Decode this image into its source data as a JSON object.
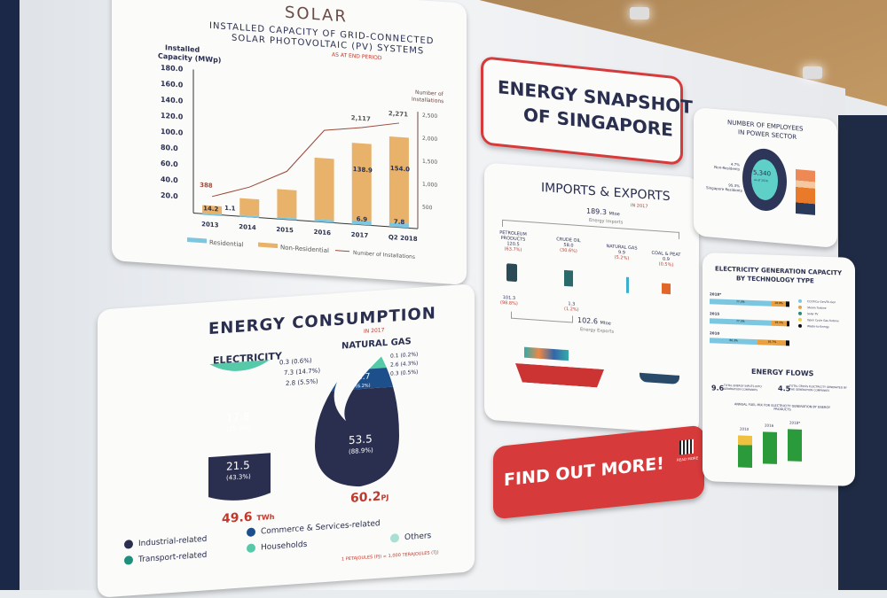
{
  "solar": {
    "title": "SOLAR",
    "subtitle_line1": "INSTALLED CAPACITY OF GRID-CONNECTED",
    "subtitle_line2": "SOLAR PHOTOVOLTAIC (PV) SYSTEMS",
    "note": "AS AT END PERIOD"
  },
  "chart_data": {
    "type": "bar",
    "title": "INSTALLED CAPACITY OF GRID-CONNECTED SOLAR PHOTOVOLTAIC (PV) SYSTEMS",
    "ylabel": "Installed Capacity (MWp)",
    "y2label": "Number of Installations",
    "categories": [
      "2013",
      "2014",
      "2015",
      "2016",
      "2017",
      "Q2 2018"
    ],
    "yticks": [
      "180.0",
      "160.0",
      "140.0",
      "120.0",
      "100.0",
      "80.0",
      "60.0",
      "40.0",
      "20.0"
    ],
    "y2ticks": [
      "2,500",
      "2,000",
      "1,500",
      "1,000",
      "500"
    ],
    "ylim": [
      0,
      180
    ],
    "y2lim": [
      0,
      2500
    ],
    "series": [
      {
        "name": "Residential",
        "color": "#7cc6e0",
        "values": [
          1.1,
          2.5,
          3.5,
          4.5,
          6.9,
          7.8
        ]
      },
      {
        "name": "Non-Residential",
        "color": "#e8b26a",
        "values": [
          14.2,
          30,
          50,
          110,
          138.9,
          154.0
        ]
      },
      {
        "name": "Number of Installations",
        "color": "#9a4a3a",
        "type": "line",
        "values": [
          388,
          650,
          1050,
          2000,
          2117,
          2271
        ]
      }
    ],
    "data_labels": [
      "14.2",
      "1.1",
      "388",
      "2,117",
      "2,271",
      "138.9",
      "154.0",
      "6.9",
      "7.8"
    ],
    "legend": "bottom"
  },
  "consumption": {
    "title": "ENERGY CONSUMPTION",
    "year": "IN 2017",
    "electricity": {
      "label": "ELECTRICITY",
      "total": "49.6",
      "unit": "TWh",
      "others": "0.3 (0.6%)",
      "households": "7.3 (14.7%)",
      "transport": "2.8 (5.5%)",
      "commerce": "17.8",
      "commerce_pct": "(35.9%)",
      "industrial": "21.5",
      "industrial_pct": "(43.3%)"
    },
    "gas": {
      "label": "NATURAL GAS",
      "total": "60.2",
      "unit": "PJ",
      "a": "0.1 (0.2%)",
      "b": "2.6 (4.3%)",
      "c": "0.3 (0.5%)",
      "commerce": "3.7",
      "commerce_pct": "(6.2%)",
      "industrial": "53.5",
      "industrial_pct": "(88.9%)"
    },
    "legend": [
      "Industrial-related",
      "Transport-related",
      "Commerce & Services-related",
      "Households",
      "Others"
    ],
    "footnote": "1 PETAJOULES (PJ) = 1,000 TERAJOULES (TJ)"
  },
  "snapshot": {
    "line1": "ENERGY SNAPSHOT",
    "line2": "OF SINGAPORE"
  },
  "imports": {
    "title": "IMPORTS & EXPORTS",
    "year": "IN 2017",
    "imports_value": "189.3",
    "imports_unit": "Mtoe",
    "imports_label": "Energy Imports",
    "items": [
      {
        "name": "PETROLEUM PRODUCTS",
        "value": "120.5",
        "pct": "(63.7%)",
        "export": "101.3",
        "export_pct": "(98.8%)"
      },
      {
        "name": "CRUDE OIL",
        "value": "58.0",
        "pct": "(30.6%)",
        "export": "1.3",
        "export_pct": "(1.2%)"
      },
      {
        "name": "NATURAL GAS",
        "value": "9.9",
        "pct": "(5.2%)"
      },
      {
        "name": "COAL & PEAT",
        "value": "0.9",
        "pct": "(0.5%)"
      }
    ],
    "exports_value": "102.6",
    "exports_unit": "Mtoe",
    "exports_label": "Energy Exports"
  },
  "cta": {
    "label": "FIND OUT MORE!",
    "qr_label": "READ MORE"
  },
  "employees": {
    "title1": "NUMBER OF EMPLOYEES",
    "title2": "IN POWER SECTOR",
    "value": "5,340",
    "sub": "as of 2016",
    "nonres": "4.7%",
    "nonres_label": "Non-Residents",
    "res": "95.3%",
    "res_label": "Singapore Residents"
  },
  "generation": {
    "title1": "ELECTRICITY GENERATION CAPACITY",
    "title2": "BY TECHNOLOGY TYPE",
    "years": [
      "2018*",
      "2015",
      "2010"
    ],
    "ccgt": [
      "77.3%",
      "77.3%",
      "60.3%"
    ],
    "steam": [
      "18.8%",
      "19.1%",
      "35.7%"
    ],
    "legend": [
      "CCGT/Co-Gen/Tri-Gen",
      "Steam Turbine",
      "Solar PV",
      "Open Cycle Gas Turbine",
      "Waste-to-Energy"
    ],
    "flows_title": "ENERGY FLOWS",
    "flow1_value": "9.6",
    "flow1_text": "TOTAL ENERGY INPUTS INTO GENERATION COMPANIES",
    "flow2_value": "4.5",
    "flow2_text": "TOTAL GROSS ELECTRICITY GENERATED BY THE GENERATION COMPANIES",
    "mix_title": "ANNUAL FUEL MIX FOR ELECTRICITY GENERATION BY ENERGY PRODUCTS",
    "mix_years": [
      "2010",
      "2016",
      "2018*"
    ]
  },
  "colors": {
    "navy": "#2a2f4f",
    "teal": "#1f8f7c",
    "mint": "#56c9a8",
    "blue": "#1d4f8a",
    "red": "#d63a3a"
  }
}
